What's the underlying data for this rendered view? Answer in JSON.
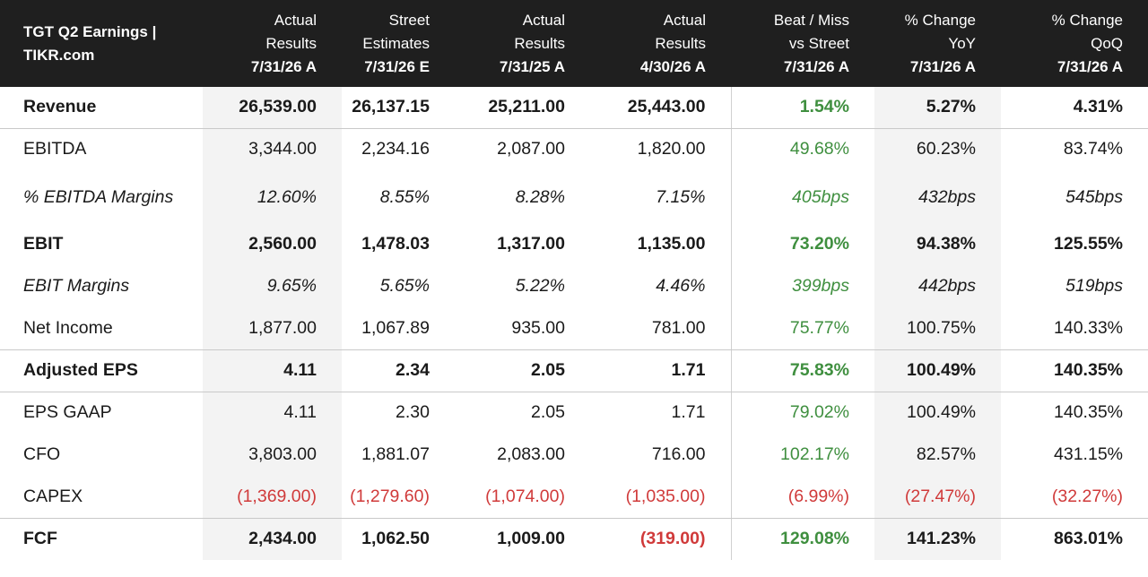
{
  "header": {
    "title_line1": "TGT Q2 Earnings |",
    "title_line2": "TIKR.com",
    "columns": [
      {
        "line1": "Actual",
        "line2": "Results",
        "date": "7/31/26 A"
      },
      {
        "line1": "Street",
        "line2": "Estimates",
        "date": "7/31/26 E"
      },
      {
        "line1": "Actual",
        "line2": "Results",
        "date": "7/31/25 A"
      },
      {
        "line1": "Actual",
        "line2": "Results",
        "date": "4/30/26 A"
      },
      {
        "line1": "Beat / Miss",
        "line2": "vs Street",
        "date": "7/31/26 A"
      },
      {
        "line1": "% Change",
        "line2": "YoY",
        "date": "7/31/26 A"
      },
      {
        "line1": "% Change",
        "line2": "QoQ",
        "date": "7/31/26 A"
      }
    ]
  },
  "rows": [
    {
      "label": "Revenue",
      "values": [
        "26,539.00",
        "26,137.15",
        "25,211.00",
        "25,443.00",
        "1.54%",
        "5.27%",
        "4.31%"
      ]
    },
    {
      "label": "EBITDA",
      "values": [
        "3,344.00",
        "2,234.16",
        "2,087.00",
        "1,820.00",
        "49.68%",
        "60.23%",
        "83.74%"
      ]
    },
    {
      "label": "% EBITDA Margins",
      "values": [
        "12.60%",
        "8.55%",
        "8.28%",
        "7.15%",
        "405bps",
        "432bps",
        "545bps"
      ]
    },
    {
      "label": "EBIT",
      "values": [
        "2,560.00",
        "1,478.03",
        "1,317.00",
        "1,135.00",
        "73.20%",
        "94.38%",
        "125.55%"
      ]
    },
    {
      "label": "EBIT Margins",
      "values": [
        "9.65%",
        "5.65%",
        "5.22%",
        "4.46%",
        "399bps",
        "442bps",
        "519bps"
      ]
    },
    {
      "label": "Net Income",
      "values": [
        "1,877.00",
        "1,067.89",
        "935.00",
        "781.00",
        "75.77%",
        "100.75%",
        "140.33%"
      ]
    },
    {
      "label": "Adjusted EPS",
      "values": [
        "4.11",
        "2.34",
        "2.05",
        "1.71",
        "75.83%",
        "100.49%",
        "140.35%"
      ]
    },
    {
      "label": "EPS GAAP",
      "values": [
        "4.11",
        "2.30",
        "2.05",
        "1.71",
        "79.02%",
        "100.49%",
        "140.35%"
      ]
    },
    {
      "label": "CFO",
      "values": [
        "3,803.00",
        "1,881.07",
        "2,083.00",
        "716.00",
        "102.17%",
        "82.57%",
        "431.15%"
      ]
    },
    {
      "label": "CAPEX",
      "values": [
        "(1,369.00)",
        "(1,279.60)",
        "(1,074.00)",
        "(1,035.00)",
        "(6.99%)",
        "(27.47%)",
        "(32.27%)"
      ]
    },
    {
      "label": "FCF",
      "values": [
        "2,434.00",
        "1,062.50",
        "1,009.00",
        "(319.00)",
        "129.08%",
        "141.23%",
        "863.01%"
      ]
    }
  ],
  "colors": {
    "positive": "#3f8f3f",
    "negative": "#d03a3a",
    "header_bg": "#1f1f1f",
    "shade": "#f3f3f3"
  }
}
